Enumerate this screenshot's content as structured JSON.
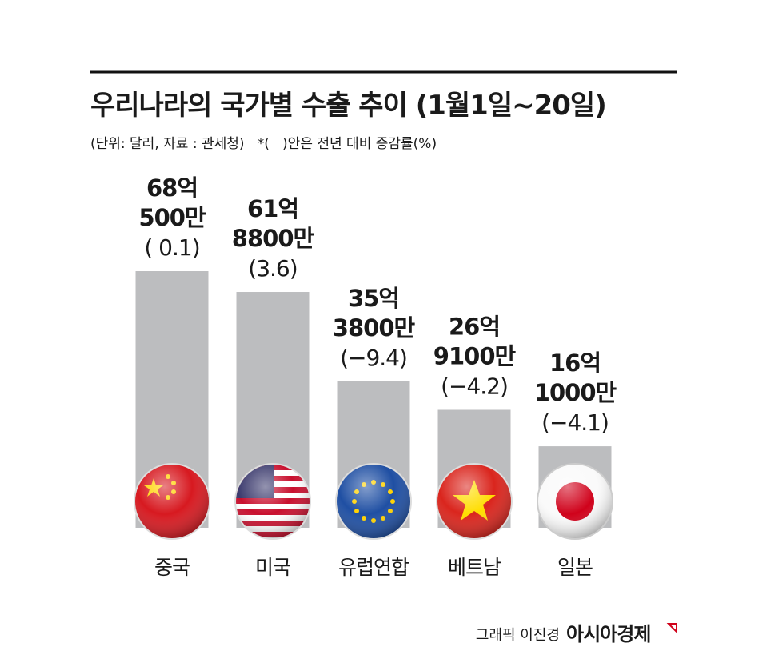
{
  "chart_data": {
    "type": "bar",
    "title": "우리나라의 국가별 수출 추이 (1월1일~20일)",
    "subtitle": "(단위: 달러, 자료 : 관세청)   *(   )안은 전년 대비 증감률(%)",
    "categories": [
      "중국",
      "미국",
      "유럽연합",
      "베트남",
      "일본"
    ],
    "values": [
      6805000000,
      6188000000,
      3538000000,
      2691000000,
      1610000000
    ],
    "value_labels": [
      [
        "68억",
        "500만"
      ],
      [
        "61억",
        "8800만"
      ],
      [
        "35억",
        "3800만"
      ],
      [
        "26억",
        "9100만"
      ],
      [
        "16억",
        "1000만"
      ]
    ],
    "changes": [
      0.1,
      3.6,
      -9.4,
      -4.2,
      -4.1
    ],
    "change_labels": [
      "( 0.1)",
      "(3.6)",
      "(−9.4)",
      "(−4.2)",
      "(−4.1)"
    ],
    "color": "#bcbdbf",
    "credit": "그래픽 이진경",
    "brand": "아시아경제"
  }
}
